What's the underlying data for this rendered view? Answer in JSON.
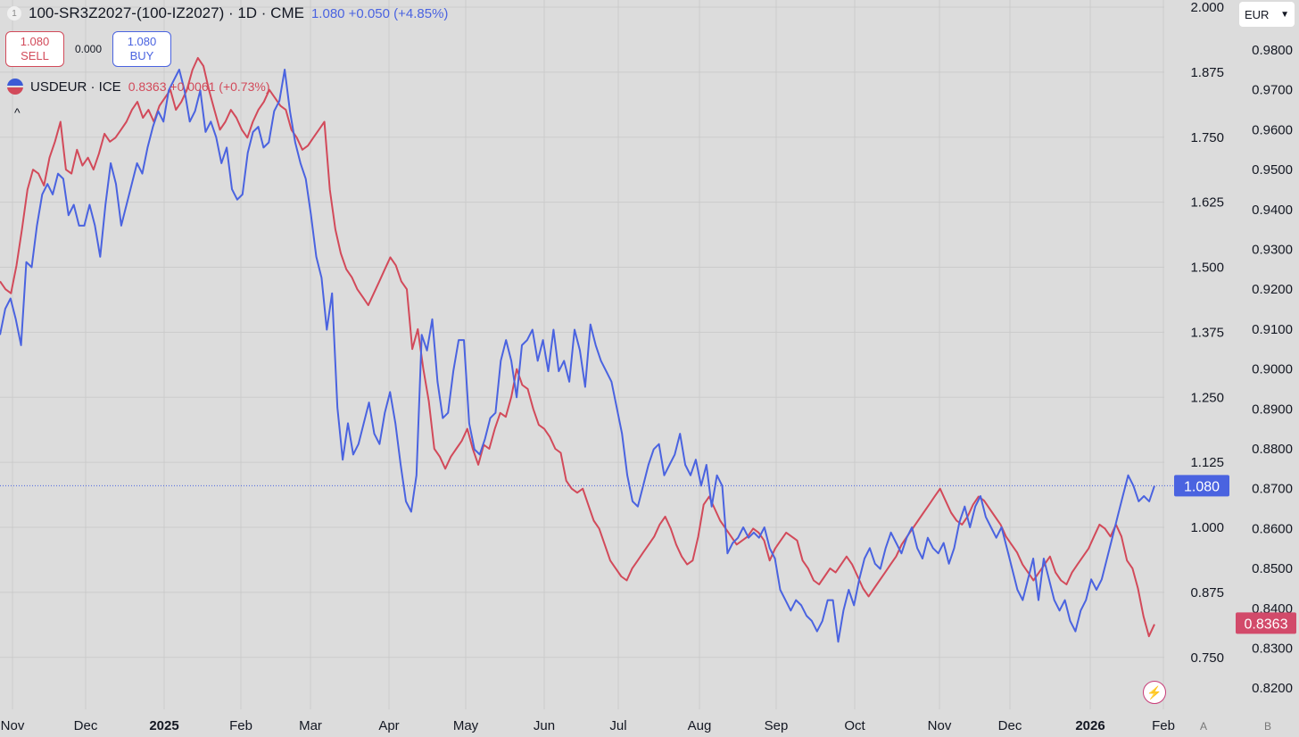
{
  "header": {
    "series_number": "1",
    "symbol_title": "100-SR3Z2027-(100-IZ2027) · 1D · CME",
    "quote": "1.080  +0.050 (+4.85%)"
  },
  "trade": {
    "sell_price": "1.080",
    "sell_label": "SELL",
    "spread": "0.000",
    "buy_price": "1.080",
    "buy_label": "BUY"
  },
  "compare": {
    "symbol": "USDEUR · ICE",
    "quote": "0.8363 +0.0061 (+0.73%)"
  },
  "currency_selector": "EUR",
  "axis_buttons": {
    "auto": "A",
    "log": "B"
  },
  "colors": {
    "primary_series": "#4a63e0",
    "compare_series": "#d24a5a",
    "background": "#dcdcdc"
  },
  "chart_data": {
    "type": "line",
    "x_axis": {
      "tick_labels": [
        "Nov",
        "Dec",
        "2025",
        "Feb",
        "Mar",
        "Apr",
        "May",
        "Jun",
        "Jul",
        "Aug",
        "Sep",
        "Oct",
        "Nov",
        "Dec",
        "2026",
        "Feb"
      ]
    },
    "y_axis_left_inner": {
      "ticks": [
        "2.000",
        "1.875",
        "1.750",
        "1.625",
        "1.500",
        "1.375",
        "1.250",
        "1.125",
        "1.000",
        "0.875",
        "0.750"
      ],
      "range": [
        0.67,
        2.0
      ]
    },
    "y_axis_right": {
      "ticks": [
        "0.9800",
        "0.9700",
        "0.9600",
        "0.9500",
        "0.9400",
        "0.9300",
        "0.9200",
        "0.9100",
        "0.9000",
        "0.8900",
        "0.8800",
        "0.8700",
        "0.8600",
        "0.8500",
        "0.8400",
        "0.8300",
        "0.8200"
      ],
      "range": [
        0.8188,
        0.9854
      ]
    },
    "series": [
      {
        "name": "100-SR3Z2027-(100-IZ2027)",
        "axis": "inner",
        "last_value": "1.080",
        "values": [
          1.37,
          1.42,
          1.44,
          1.4,
          1.35,
          1.51,
          1.5,
          1.58,
          1.64,
          1.66,
          1.64,
          1.68,
          1.67,
          1.6,
          1.62,
          1.58,
          1.58,
          1.62,
          1.58,
          1.52,
          1.62,
          1.7,
          1.66,
          1.58,
          1.62,
          1.66,
          1.7,
          1.68,
          1.73,
          1.77,
          1.8,
          1.78,
          1.84,
          1.86,
          1.88,
          1.84,
          1.78,
          1.8,
          1.84,
          1.76,
          1.78,
          1.75,
          1.7,
          1.73,
          1.65,
          1.63,
          1.64,
          1.72,
          1.76,
          1.77,
          1.73,
          1.74,
          1.8,
          1.82,
          1.88,
          1.8,
          1.74,
          1.7,
          1.67,
          1.6,
          1.52,
          1.48,
          1.38,
          1.45,
          1.23,
          1.13,
          1.2,
          1.14,
          1.16,
          1.2,
          1.24,
          1.18,
          1.16,
          1.22,
          1.26,
          1.2,
          1.12,
          1.05,
          1.03,
          1.1,
          1.37,
          1.34,
          1.4,
          1.28,
          1.21,
          1.22,
          1.3,
          1.36,
          1.36,
          1.2,
          1.15,
          1.14,
          1.17,
          1.21,
          1.22,
          1.32,
          1.36,
          1.32,
          1.25,
          1.35,
          1.36,
          1.38,
          1.32,
          1.36,
          1.3,
          1.38,
          1.3,
          1.32,
          1.28,
          1.38,
          1.34,
          1.27,
          1.39,
          1.35,
          1.32,
          1.3,
          1.28,
          1.23,
          1.18,
          1.1,
          1.05,
          1.04,
          1.08,
          1.12,
          1.15,
          1.16,
          1.1,
          1.12,
          1.14,
          1.18,
          1.12,
          1.1,
          1.13,
          1.08,
          1.12,
          1.04,
          1.1,
          1.08,
          0.95,
          0.97,
          0.98,
          1.0,
          0.98,
          0.99,
          0.98,
          1.0,
          0.96,
          0.94,
          0.88,
          0.86,
          0.84,
          0.86,
          0.85,
          0.83,
          0.82,
          0.8,
          0.82,
          0.86,
          0.86,
          0.78,
          0.84,
          0.88,
          0.85,
          0.9,
          0.94,
          0.96,
          0.93,
          0.92,
          0.96,
          0.99,
          0.97,
          0.95,
          0.98,
          1.0,
          0.96,
          0.94,
          0.98,
          0.96,
          0.95,
          0.97,
          0.93,
          0.96,
          1.01,
          1.04,
          1.0,
          1.04,
          1.06,
          1.02,
          1.0,
          0.98,
          1.0,
          0.96,
          0.92,
          0.88,
          0.86,
          0.9,
          0.94,
          0.86,
          0.94,
          0.9,
          0.86,
          0.84,
          0.86,
          0.82,
          0.8,
          0.84,
          0.86,
          0.9,
          0.88,
          0.9,
          0.94,
          0.98,
          1.02,
          1.06,
          1.1,
          1.08,
          1.05,
          1.06,
          1.05,
          1.08
        ]
      },
      {
        "name": "USDEUR",
        "axis": "right",
        "last_value": "0.8363",
        "values": [
          0.922,
          0.92,
          0.919,
          0.926,
          0.935,
          0.945,
          0.95,
          0.949,
          0.946,
          0.953,
          0.957,
          0.962,
          0.95,
          0.949,
          0.955,
          0.951,
          0.953,
          0.95,
          0.954,
          0.959,
          0.957,
          0.958,
          0.96,
          0.962,
          0.965,
          0.967,
          0.963,
          0.965,
          0.962,
          0.966,
          0.968,
          0.97,
          0.965,
          0.967,
          0.97,
          0.975,
          0.978,
          0.976,
          0.97,
          0.965,
          0.96,
          0.962,
          0.965,
          0.963,
          0.96,
          0.958,
          0.962,
          0.965,
          0.967,
          0.97,
          0.968,
          0.966,
          0.965,
          0.96,
          0.958,
          0.955,
          0.956,
          0.958,
          0.96,
          0.962,
          0.945,
          0.935,
          0.929,
          0.925,
          0.923,
          0.92,
          0.918,
          0.916,
          0.919,
          0.922,
          0.925,
          0.928,
          0.926,
          0.922,
          0.92,
          0.905,
          0.91,
          0.9,
          0.892,
          0.88,
          0.878,
          0.875,
          0.878,
          0.88,
          0.882,
          0.885,
          0.88,
          0.876,
          0.881,
          0.88,
          0.885,
          0.889,
          0.888,
          0.893,
          0.9,
          0.896,
          0.895,
          0.89,
          0.886,
          0.885,
          0.883,
          0.88,
          0.879,
          0.872,
          0.87,
          0.869,
          0.87,
          0.866,
          0.862,
          0.86,
          0.856,
          0.852,
          0.85,
          0.848,
          0.847,
          0.85,
          0.852,
          0.854,
          0.856,
          0.858,
          0.861,
          0.863,
          0.86,
          0.856,
          0.853,
          0.851,
          0.852,
          0.858,
          0.866,
          0.868,
          0.865,
          0.862,
          0.86,
          0.858,
          0.856,
          0.857,
          0.858,
          0.86,
          0.859,
          0.857,
          0.852,
          0.855,
          0.857,
          0.859,
          0.858,
          0.857,
          0.852,
          0.85,
          0.847,
          0.846,
          0.848,
          0.85,
          0.849,
          0.851,
          0.853,
          0.851,
          0.848,
          0.845,
          0.843,
          0.845,
          0.847,
          0.849,
          0.851,
          0.853,
          0.856,
          0.858,
          0.86,
          0.862,
          0.864,
          0.866,
          0.868,
          0.87,
          0.867,
          0.864,
          0.862,
          0.861,
          0.863,
          0.866,
          0.868,
          0.867,
          0.865,
          0.863,
          0.861,
          0.858,
          0.856,
          0.854,
          0.851,
          0.849,
          0.847,
          0.849,
          0.851,
          0.853,
          0.849,
          0.847,
          0.846,
          0.849,
          0.851,
          0.853,
          0.855,
          0.858,
          0.861,
          0.86,
          0.858,
          0.861,
          0.858,
          0.852,
          0.85,
          0.845,
          0.838,
          0.833,
          0.836
        ]
      }
    ]
  }
}
